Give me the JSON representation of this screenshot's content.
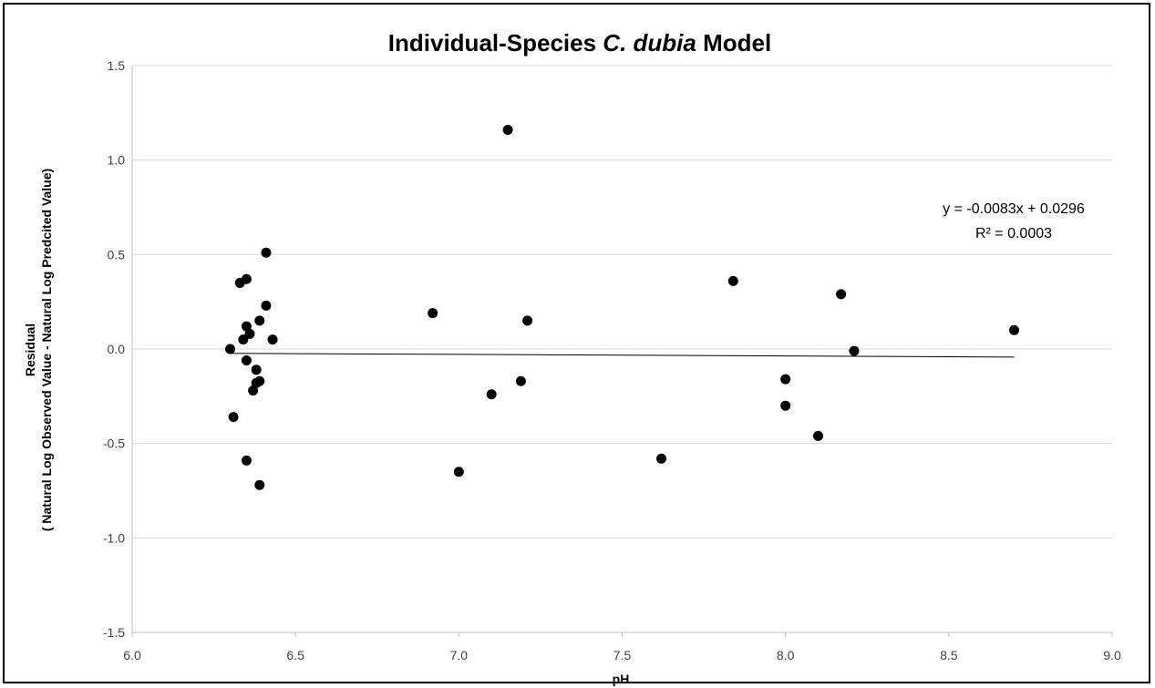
{
  "chart_data": {
    "type": "scatter",
    "title_main": "Individual-Species ",
    "title_italic": "C. dubia",
    "title_end": " Model",
    "xlabel": "pH",
    "ylabel_line1": "Residual",
    "ylabel_line2": "( Natural Log Observed Value - Natural Log Predcited Value)",
    "xlim": [
      6.0,
      9.0
    ],
    "ylim": [
      -1.5,
      1.5
    ],
    "x_ticks": [
      "6.0",
      "6.5",
      "7.0",
      "7.5",
      "8.0",
      "8.5",
      "9.0"
    ],
    "y_ticks": [
      "1.5",
      "1.0",
      "0.5",
      "0.0",
      "-0.5",
      "-1.0",
      "-1.5"
    ],
    "grid": "horizontal",
    "trendline": {
      "equation": "y = -0.0083x + 0.0296",
      "r_squared": "R² = 0.0003",
      "slope": -0.0083,
      "intercept": 0.0296,
      "x_range": [
        6.3,
        8.7
      ]
    },
    "points": [
      {
        "x": 6.3,
        "y": 0.0
      },
      {
        "x": 6.31,
        "y": -0.36
      },
      {
        "x": 6.33,
        "y": 0.35
      },
      {
        "x": 6.34,
        "y": 0.05
      },
      {
        "x": 6.35,
        "y": 0.37
      },
      {
        "x": 6.35,
        "y": 0.12
      },
      {
        "x": 6.35,
        "y": -0.06
      },
      {
        "x": 6.35,
        "y": -0.59
      },
      {
        "x": 6.36,
        "y": 0.08
      },
      {
        "x": 6.37,
        "y": -0.22
      },
      {
        "x": 6.38,
        "y": -0.11
      },
      {
        "x": 6.38,
        "y": -0.18
      },
      {
        "x": 6.39,
        "y": 0.15
      },
      {
        "x": 6.39,
        "y": -0.17
      },
      {
        "x": 6.39,
        "y": -0.72
      },
      {
        "x": 6.41,
        "y": 0.51
      },
      {
        "x": 6.41,
        "y": 0.23
      },
      {
        "x": 6.43,
        "y": 0.05
      },
      {
        "x": 6.92,
        "y": 0.19
      },
      {
        "x": 7.0,
        "y": -0.65
      },
      {
        "x": 7.1,
        "y": -0.24
      },
      {
        "x": 7.15,
        "y": 1.16
      },
      {
        "x": 7.19,
        "y": -0.17
      },
      {
        "x": 7.21,
        "y": 0.15
      },
      {
        "x": 7.62,
        "y": -0.58
      },
      {
        "x": 7.84,
        "y": 0.36
      },
      {
        "x": 8.0,
        "y": -0.16
      },
      {
        "x": 8.0,
        "y": -0.3
      },
      {
        "x": 8.1,
        "y": -0.46
      },
      {
        "x": 8.17,
        "y": 0.29
      },
      {
        "x": 8.21,
        "y": -0.01
      },
      {
        "x": 8.7,
        "y": 0.1
      }
    ]
  }
}
